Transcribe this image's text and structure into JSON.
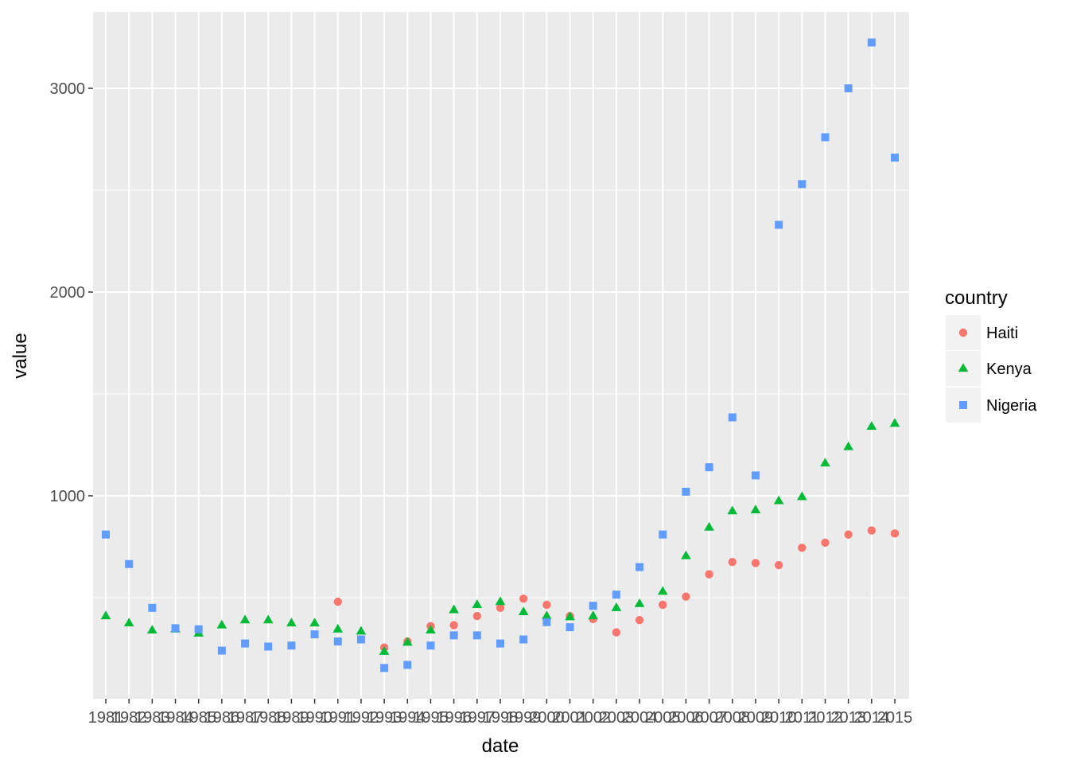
{
  "chart_data": {
    "type": "scatter",
    "title": "",
    "xlabel": "date",
    "ylabel": "value",
    "x": [
      "1981",
      "1982",
      "1983",
      "1984",
      "1985",
      "1986",
      "1987",
      "1988",
      "1989",
      "1990",
      "1991",
      "1992",
      "1993",
      "1994",
      "1995",
      "1996",
      "1997",
      "1998",
      "1999",
      "2000",
      "2001",
      "2002",
      "2003",
      "2004",
      "2005",
      "2006",
      "2007",
      "2008",
      "2009",
      "2010",
      "2011",
      "2012",
      "2013",
      "2014",
      "2015"
    ],
    "ylim": [
      0,
      3350
    ],
    "yticks": [
      1000,
      2000,
      3000
    ],
    "grid": true,
    "legend": {
      "title": "country",
      "position": "right"
    },
    "series": [
      {
        "name": "Haiti",
        "shape": "circle",
        "color": "#F8766D",
        "values": [
          null,
          null,
          null,
          null,
          null,
          null,
          null,
          null,
          null,
          null,
          480,
          null,
          255,
          285,
          360,
          365,
          410,
          450,
          495,
          465,
          410,
          395,
          330,
          390,
          465,
          505,
          615,
          675,
          670,
          660,
          745,
          770,
          810,
          830,
          815
        ]
      },
      {
        "name": "Kenya",
        "shape": "triangle",
        "color": "#00BA38",
        "values": [
          410,
          375,
          340,
          345,
          325,
          365,
          390,
          390,
          375,
          375,
          345,
          335,
          235,
          280,
          340,
          440,
          465,
          480,
          430,
          410,
          405,
          410,
          450,
          470,
          530,
          705,
          845,
          925,
          930,
          975,
          995,
          1160,
          1240,
          1340,
          1355
        ]
      },
      {
        "name": "Nigeria",
        "shape": "square",
        "color": "#619CFF",
        "values": [
          810,
          665,
          450,
          350,
          345,
          240,
          275,
          260,
          265,
          320,
          285,
          295,
          155,
          170,
          265,
          315,
          315,
          275,
          295,
          380,
          355,
          460,
          515,
          650,
          810,
          1020,
          1140,
          1385,
          1100,
          2330,
          2530,
          2760,
          3000,
          3225,
          2660
        ]
      }
    ]
  }
}
